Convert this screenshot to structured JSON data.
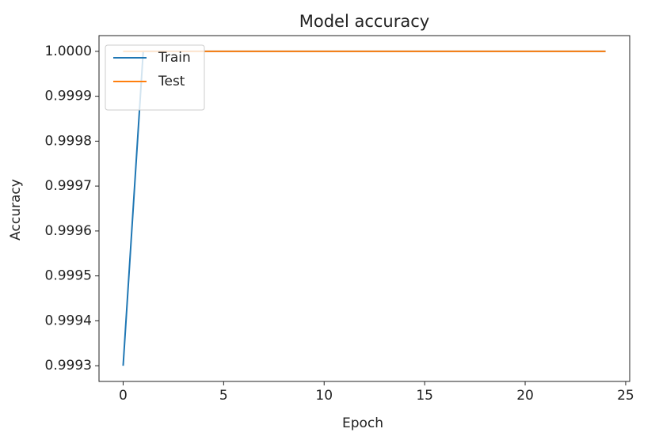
{
  "chart_data": {
    "type": "line",
    "title": "Model accuracy",
    "x_label": "Epoch",
    "y_label": "Accuracy",
    "x": [
      0,
      1,
      2,
      3,
      4,
      5,
      6,
      7,
      8,
      9,
      10,
      11,
      12,
      13,
      14,
      15,
      16,
      17,
      18,
      19,
      20,
      21,
      22,
      23,
      24
    ],
    "series": [
      {
        "name": "Train",
        "color": "#1f77b4",
        "values": [
          0.9993,
          1,
          1,
          1,
          1,
          1,
          1,
          1,
          1,
          1,
          1,
          1,
          1,
          1,
          1,
          1,
          1,
          1,
          1,
          1,
          1,
          1,
          1,
          1,
          1
        ]
      },
      {
        "name": "Test",
        "color": "#ff7f0e",
        "values": [
          1,
          1,
          1,
          1,
          1,
          1,
          1,
          1,
          1,
          1,
          1,
          1,
          1,
          1,
          1,
          1,
          1,
          1,
          1,
          1,
          1,
          1,
          1,
          1,
          1
        ]
      }
    ],
    "xlim": [
      -1.2,
      25.2
    ],
    "xticks": [
      0,
      5,
      10,
      15,
      20,
      25
    ],
    "ylim": [
      0.999265,
      1.000035
    ],
    "yticks": [
      0.9993,
      0.9994,
      0.9995,
      0.9996,
      0.9997,
      0.9998,
      0.9999,
      {
        "value": 1,
        "label": "1.0000"
      }
    ],
    "legend": "upper left",
    "grid": false
  }
}
